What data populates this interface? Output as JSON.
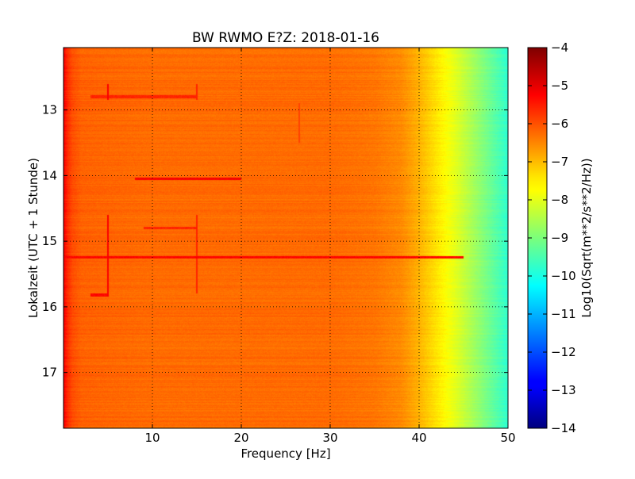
{
  "chart_data": {
    "type": "heatmap",
    "title": "BW RWMO E?Z: 2018-01-16",
    "xlabel": "Frequency [Hz]",
    "ylabel": "Lokalzeit (UTC + 1 Stunde)",
    "xlim": [
      0,
      50
    ],
    "ylim": [
      17.85,
      12.05
    ],
    "y_inverted": true,
    "grid": true,
    "grid_style": "dotted",
    "colormap": "jet",
    "x_ticks": [
      10,
      20,
      30,
      40,
      50
    ],
    "x_tick_labels": [
      "10",
      "20",
      "30",
      "40",
      "50"
    ],
    "y_ticks": [
      13,
      14,
      15,
      16,
      17
    ],
    "y_tick_labels": [
      "13",
      "14",
      "15",
      "16",
      "17"
    ],
    "colorbar": {
      "label": "Log10(Sqrt(m**2/s**2/Hz))",
      "range": [
        -14,
        -4
      ],
      "ticks": [
        -4,
        -5,
        -6,
        -7,
        -8,
        -9,
        -10,
        -11,
        -12,
        -13,
        -14
      ],
      "tick_labels": [
        "−4",
        "−5",
        "−6",
        "−7",
        "−8",
        "−9",
        "−10",
        "−11",
        "−12",
        "−13",
        "−14"
      ]
    },
    "spectral_profile": {
      "frequency_hz": [
        0,
        0.5,
        1,
        2,
        5,
        10,
        20,
        30,
        35,
        38,
        40,
        42,
        44,
        46,
        48,
        50
      ],
      "log_amplitude": [
        -5.2,
        -5.7,
        -6.0,
        -6.2,
        -6.25,
        -6.3,
        -6.3,
        -6.3,
        -6.4,
        -6.6,
        -7.0,
        -7.5,
        -8.0,
        -8.6,
        -9.2,
        -9.8
      ]
    },
    "features": [
      {
        "kind": "time_band",
        "hour": 15.25,
        "freq_range": [
          0,
          45
        ],
        "log_amplitude": -5.3
      },
      {
        "kind": "time_band",
        "hour": 14.05,
        "freq_range": [
          8,
          20
        ],
        "log_amplitude": -5.2
      },
      {
        "kind": "time_band",
        "hour": 12.8,
        "freq_range": [
          3,
          15
        ],
        "log_amplitude": -5.6
      },
      {
        "kind": "time_band",
        "hour": 15.82,
        "freq_range": [
          3,
          5
        ],
        "log_amplitude": -5.3
      },
      {
        "kind": "time_band",
        "hour": 14.8,
        "freq_range": [
          9,
          15
        ],
        "log_amplitude": -5.6
      },
      {
        "kind": "freq_line",
        "freq_hz": 5,
        "hour_range": [
          12.6,
          12.85
        ],
        "log_amplitude": -5.2
      },
      {
        "kind": "freq_line",
        "freq_hz": 5,
        "hour_range": [
          14.6,
          15.85
        ],
        "log_amplitude": -5.2
      },
      {
        "kind": "freq_line",
        "freq_hz": 15,
        "hour_range": [
          12.6,
          12.85
        ],
        "log_amplitude": -5.6
      },
      {
        "kind": "freq_line",
        "freq_hz": 15,
        "hour_range": [
          14.6,
          15.8
        ],
        "log_amplitude": -5.6
      },
      {
        "kind": "freq_line",
        "freq_hz": 26.5,
        "hour_range": [
          12.9,
          13.5
        ],
        "log_amplitude": -5.9
      }
    ]
  }
}
